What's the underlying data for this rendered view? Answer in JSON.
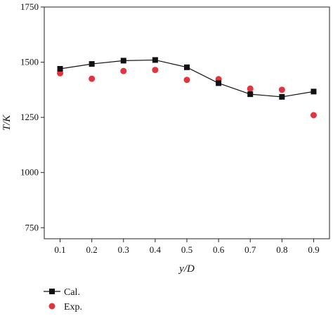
{
  "chart_data": {
    "type": "line",
    "xlabel": "y/D",
    "ylabel": "T/K",
    "xlim": [
      0.05,
      0.95
    ],
    "ylim": [
      700,
      1750
    ],
    "x_ticks": [
      "0.1",
      "0.2",
      "0.3",
      "0.4",
      "0.5",
      "0.6",
      "0.7",
      "0.8",
      "0.9"
    ],
    "y_ticks": [
      "750",
      "1000",
      "1250",
      "1500",
      "1750"
    ],
    "grid": false,
    "legend_position": "bottom-left",
    "series": [
      {
        "name": "Cal.",
        "style": "line-with-square-markers",
        "color": "#111111",
        "x": [
          0.1,
          0.2,
          0.3,
          0.4,
          0.5,
          0.6,
          0.7,
          0.8,
          0.9
        ],
        "y": [
          1470,
          1492,
          1507,
          1510,
          1477,
          1405,
          1355,
          1343,
          1367
        ]
      },
      {
        "name": "Exp.",
        "style": "red-circle-markers",
        "color": "#e0343f",
        "x": [
          0.1,
          0.2,
          0.3,
          0.4,
          0.5,
          0.6,
          0.7,
          0.8,
          0.9
        ],
        "y": [
          1450,
          1425,
          1460,
          1465,
          1420,
          1423,
          1380,
          1375,
          1260
        ]
      }
    ]
  }
}
